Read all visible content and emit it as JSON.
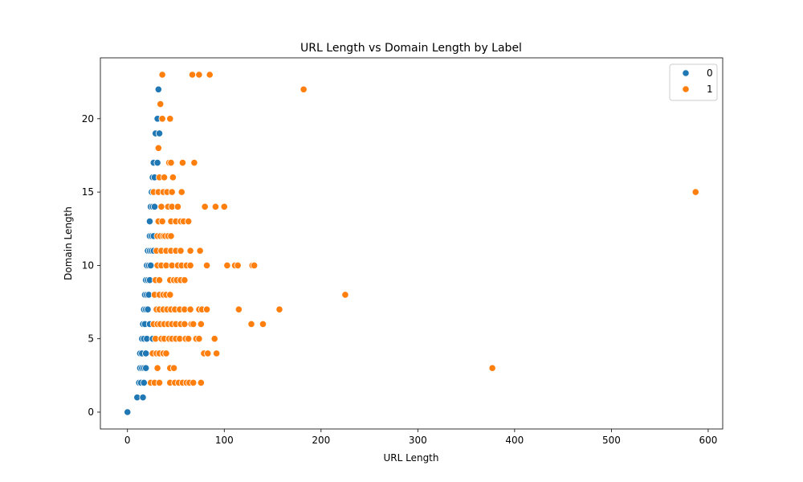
{
  "chart_data": {
    "type": "scatter",
    "title": "URL Length vs Domain Length by Label",
    "xlabel": "URL Length",
    "ylabel": "Domain Length",
    "xlim": [
      -28,
      615
    ],
    "ylim": [
      -1.15,
      24.15
    ],
    "xticks": [
      0,
      100,
      200,
      300,
      400,
      500,
      600
    ],
    "yticks": [
      0,
      5,
      10,
      15,
      20
    ],
    "grid": false,
    "legend_position": "top-right",
    "series": [
      {
        "name": "0",
        "color": "#1f77b4",
        "points": [
          [
            0,
            0
          ],
          [
            10,
            1
          ],
          [
            16,
            1
          ],
          [
            12,
            2
          ],
          [
            14,
            2
          ],
          [
            17,
            2
          ],
          [
            13,
            3
          ],
          [
            15,
            3
          ],
          [
            17,
            3
          ],
          [
            19,
            3
          ],
          [
            13,
            4
          ],
          [
            15,
            4
          ],
          [
            19,
            4
          ],
          [
            15,
            5
          ],
          [
            17,
            5
          ],
          [
            20,
            5
          ],
          [
            26,
            5
          ],
          [
            16,
            6
          ],
          [
            18,
            6
          ],
          [
            23,
            6
          ],
          [
            17,
            7
          ],
          [
            19,
            7
          ],
          [
            21,
            7
          ],
          [
            18,
            8
          ],
          [
            20,
            8
          ],
          [
            22,
            8
          ],
          [
            19,
            9
          ],
          [
            21,
            9
          ],
          [
            23,
            9
          ],
          [
            20,
            10
          ],
          [
            22,
            10
          ],
          [
            24,
            10
          ],
          [
            21,
            11
          ],
          [
            23,
            11
          ],
          [
            25,
            11
          ],
          [
            27,
            11
          ],
          [
            23,
            12
          ],
          [
            25,
            12
          ],
          [
            27,
            12
          ],
          [
            23,
            13
          ],
          [
            24,
            14
          ],
          [
            26,
            14
          ],
          [
            28,
            14
          ],
          [
            25,
            15
          ],
          [
            27,
            15
          ],
          [
            26,
            16
          ],
          [
            28,
            16
          ],
          [
            27,
            17
          ],
          [
            31,
            17
          ],
          [
            29,
            19
          ],
          [
            33,
            19
          ],
          [
            31,
            20
          ],
          [
            32,
            22
          ]
        ]
      },
      {
        "name": "1",
        "color": "#ff7f0e",
        "points": [
          [
            24,
            2
          ],
          [
            28,
            2
          ],
          [
            33,
            2
          ],
          [
            44,
            2
          ],
          [
            49,
            2
          ],
          [
            53,
            2
          ],
          [
            57,
            2
          ],
          [
            61,
            2
          ],
          [
            64,
            2
          ],
          [
            68,
            2
          ],
          [
            76,
            2
          ],
          [
            31,
            3
          ],
          [
            44,
            3
          ],
          [
            48,
            3
          ],
          [
            26,
            4
          ],
          [
            30,
            4
          ],
          [
            33,
            4
          ],
          [
            37,
            4
          ],
          [
            40,
            4
          ],
          [
            79,
            4
          ],
          [
            83,
            4
          ],
          [
            92,
            4
          ],
          [
            29,
            5
          ],
          [
            35,
            5
          ],
          [
            38,
            5
          ],
          [
            43,
            5
          ],
          [
            46,
            5
          ],
          [
            50,
            5
          ],
          [
            54,
            5
          ],
          [
            60,
            5
          ],
          [
            63,
            5
          ],
          [
            71,
            5
          ],
          [
            74,
            5
          ],
          [
            90,
            5
          ],
          [
            27,
            6
          ],
          [
            31,
            6
          ],
          [
            34,
            6
          ],
          [
            38,
            6
          ],
          [
            42,
            6
          ],
          [
            46,
            6
          ],
          [
            50,
            6
          ],
          [
            55,
            6
          ],
          [
            59,
            6
          ],
          [
            66,
            6
          ],
          [
            68,
            6
          ],
          [
            76,
            6
          ],
          [
            128,
            6
          ],
          [
            140,
            6
          ],
          [
            30,
            7
          ],
          [
            33,
            7
          ],
          [
            37,
            7
          ],
          [
            41,
            7
          ],
          [
            45,
            7
          ],
          [
            49,
            7
          ],
          [
            54,
            7
          ],
          [
            59,
            7
          ],
          [
            65,
            7
          ],
          [
            74,
            7
          ],
          [
            77,
            7
          ],
          [
            82,
            7
          ],
          [
            115,
            7
          ],
          [
            157,
            7
          ],
          [
            225,
            8
          ],
          [
            28,
            8
          ],
          [
            33,
            8
          ],
          [
            37,
            8
          ],
          [
            40,
            8
          ],
          [
            44,
            8
          ],
          [
            29,
            9
          ],
          [
            33,
            9
          ],
          [
            44,
            9
          ],
          [
            48,
            9
          ],
          [
            51,
            9
          ],
          [
            55,
            9
          ],
          [
            59,
            9
          ],
          [
            31,
            10
          ],
          [
            35,
            10
          ],
          [
            40,
            10
          ],
          [
            46,
            10
          ],
          [
            52,
            10
          ],
          [
            56,
            10
          ],
          [
            61,
            10
          ],
          [
            65,
            10
          ],
          [
            82,
            10
          ],
          [
            103,
            10
          ],
          [
            111,
            10
          ],
          [
            114,
            10
          ],
          [
            129,
            10
          ],
          [
            131,
            10
          ],
          [
            30,
            11
          ],
          [
            35,
            11
          ],
          [
            40,
            11
          ],
          [
            45,
            11
          ],
          [
            50,
            11
          ],
          [
            55,
            11
          ],
          [
            65,
            11
          ],
          [
            75,
            11
          ],
          [
            31,
            12
          ],
          [
            34,
            12
          ],
          [
            37,
            12
          ],
          [
            39,
            12
          ],
          [
            42,
            12
          ],
          [
            45,
            12
          ],
          [
            32,
            13
          ],
          [
            36,
            13
          ],
          [
            45,
            13
          ],
          [
            50,
            13
          ],
          [
            55,
            13
          ],
          [
            58,
            13
          ],
          [
            63,
            13
          ],
          [
            35,
            14
          ],
          [
            42,
            14
          ],
          [
            46,
            14
          ],
          [
            52,
            14
          ],
          [
            80,
            14
          ],
          [
            91,
            14
          ],
          [
            100,
            14
          ],
          [
            27,
            15
          ],
          [
            32,
            15
          ],
          [
            37,
            15
          ],
          [
            41,
            15
          ],
          [
            46,
            15
          ],
          [
            56,
            15
          ],
          [
            587,
            15
          ],
          [
            33,
            16
          ],
          [
            38,
            16
          ],
          [
            47,
            16
          ],
          [
            43,
            17
          ],
          [
            45,
            17
          ],
          [
            57,
            17
          ],
          [
            69,
            17
          ],
          [
            32,
            18
          ],
          [
            36,
            20
          ],
          [
            44,
            20
          ],
          [
            34,
            21
          ],
          [
            182,
            22
          ],
          [
            36,
            23
          ],
          [
            67,
            23
          ],
          [
            74,
            23
          ],
          [
            85,
            23
          ],
          [
            377,
            3
          ]
        ]
      }
    ]
  }
}
